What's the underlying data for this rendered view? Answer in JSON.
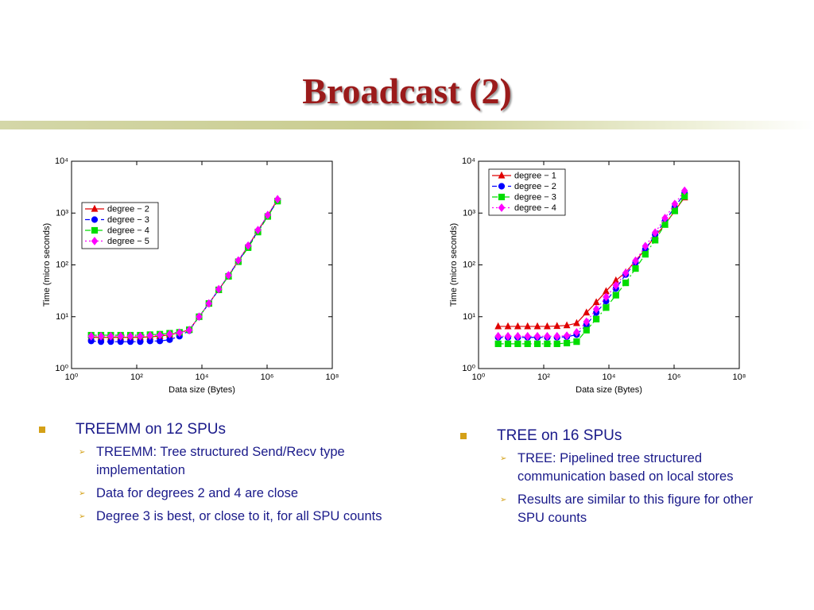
{
  "title": "Broadcast (2)",
  "chart_data": [
    {
      "type": "line",
      "xlabel": "Data size (Bytes)",
      "ylabel": "Time (micro seconds)",
      "xscale": "log",
      "yscale": "log",
      "legend": "upper left",
      "xlim": [
        1,
        100000000
      ],
      "ylim": [
        1,
        10000
      ],
      "xticks": [
        {
          "value": 1,
          "label": "10⁰"
        },
        {
          "value": 100,
          "label": "10²"
        },
        {
          "value": 10000,
          "label": "10⁴"
        },
        {
          "value": 1000000,
          "label": "10⁶"
        },
        {
          "value": 100000000,
          "label": "10⁸"
        }
      ],
      "yticks": [
        {
          "value": 1,
          "label": "10⁰"
        },
        {
          "value": 10,
          "label": "10¹"
        },
        {
          "value": 100,
          "label": "10²"
        },
        {
          "value": 1000,
          "label": "10³"
        },
        {
          "value": 10000,
          "label": "10⁴"
        }
      ],
      "x": [
        4,
        8,
        16,
        32,
        64,
        128,
        256,
        512,
        1024,
        2048,
        4096,
        8192,
        16384,
        32768,
        65536,
        131072,
        262144,
        524288,
        1048576,
        2097152
      ],
      "series": [
        {
          "name": "degree − 2",
          "color": "#e00000",
          "marker": "triangle",
          "line_style": "solid",
          "values": [
            4.0,
            4.0,
            4.0,
            4.0,
            4.0,
            4.0,
            4.1,
            4.2,
            4.5,
            4.9,
            5.6,
            10,
            18,
            33,
            62,
            120,
            230,
            460,
            900,
            1800
          ]
        },
        {
          "name": "degree − 3",
          "color": "#0000ff",
          "marker": "circle",
          "line_style": "dashed",
          "values": [
            3.4,
            3.3,
            3.3,
            3.3,
            3.3,
            3.3,
            3.4,
            3.4,
            3.6,
            4.2,
            5.4,
            10,
            18,
            33,
            62,
            118,
            225,
            450,
            880,
            1750
          ]
        },
        {
          "name": "degree − 4",
          "color": "#00dd00",
          "marker": "square",
          "line_style": "dashdot",
          "values": [
            4.4,
            4.4,
            4.4,
            4.4,
            4.4,
            4.4,
            4.5,
            4.6,
            4.8,
            5.0,
            5.6,
            10,
            18,
            33,
            60,
            115,
            215,
            430,
            860,
            1700
          ]
        },
        {
          "name": "degree − 5",
          "color": "#ff00ff",
          "marker": "diamond",
          "line_style": "dotted",
          "values": [
            4.2,
            4.2,
            4.2,
            4.2,
            4.2,
            4.2,
            4.3,
            4.4,
            4.6,
            4.9,
            5.5,
            10,
            18,
            34,
            63,
            122,
            235,
            470,
            920,
            1850
          ]
        }
      ]
    },
    {
      "type": "line",
      "xlabel": "Data size (Bytes)",
      "ylabel": "Time (micro seconds)",
      "xscale": "log",
      "yscale": "log",
      "legend": "upper left",
      "xlim": [
        1,
        100000000
      ],
      "ylim": [
        1,
        10000
      ],
      "xticks": [
        {
          "value": 1,
          "label": "10⁰"
        },
        {
          "value": 100,
          "label": "10²"
        },
        {
          "value": 10000,
          "label": "10⁴"
        },
        {
          "value": 1000000,
          "label": "10⁶"
        },
        {
          "value": 100000000,
          "label": "10⁸"
        }
      ],
      "yticks": [
        {
          "value": 1,
          "label": "10⁰"
        },
        {
          "value": 10,
          "label": "10¹"
        },
        {
          "value": 100,
          "label": "10²"
        },
        {
          "value": 1000,
          "label": "10³"
        },
        {
          "value": 10000,
          "label": "10⁴"
        }
      ],
      "x": [
        4,
        8,
        16,
        32,
        64,
        128,
        256,
        512,
        1024,
        2048,
        4096,
        8192,
        16384,
        32768,
        65536,
        131072,
        262144,
        524288,
        1048576,
        2097152
      ],
      "series": [
        {
          "name": "degree − 1",
          "color": "#e00000",
          "marker": "triangle",
          "line_style": "solid",
          "values": [
            6.5,
            6.5,
            6.5,
            6.5,
            6.5,
            6.5,
            6.6,
            6.8,
            7.5,
            12,
            19,
            31,
            50,
            72,
            120,
            200,
            360,
            600,
            1100,
            2000
          ]
        },
        {
          "name": "degree − 2",
          "color": "#0000ff",
          "marker": "circle",
          "line_style": "dashed",
          "values": [
            4.0,
            4.0,
            4.0,
            4.0,
            4.0,
            4.0,
            4.0,
            4.1,
            4.5,
            7,
            12,
            20,
            35,
            65,
            110,
            200,
            380,
            700,
            1300,
            2400
          ]
        },
        {
          "name": "degree − 3",
          "color": "#00dd00",
          "marker": "square",
          "line_style": "dashdot",
          "values": [
            3.0,
            3.0,
            3.0,
            3.0,
            3.0,
            3.0,
            3.0,
            3.1,
            3.3,
            5.5,
            9,
            15,
            26,
            45,
            85,
            160,
            300,
            600,
            1100,
            2100
          ]
        },
        {
          "name": "degree − 4",
          "color": "#ff00ff",
          "marker": "diamond",
          "line_style": "dotted",
          "values": [
            4.2,
            4.2,
            4.2,
            4.2,
            4.2,
            4.2,
            4.2,
            4.3,
            5,
            8,
            14,
            24,
            40,
            70,
            120,
            230,
            420,
            800,
            1500,
            2700
          ]
        }
      ]
    }
  ],
  "columns": [
    {
      "heading": "TREEMM on 12 SPUs",
      "items": [
        "TREEMM: Tree structured Send/Recv type implementation",
        "Data for degrees 2 and 4 are close",
        "Degree 3 is best, or close to it, for all SPU counts"
      ]
    },
    {
      "heading": "TREE on 16 SPUs",
      "items": [
        "TREE: Pipelined tree structured communication based on local stores",
        "Results are similar to this figure for other SPU counts"
      ]
    }
  ]
}
